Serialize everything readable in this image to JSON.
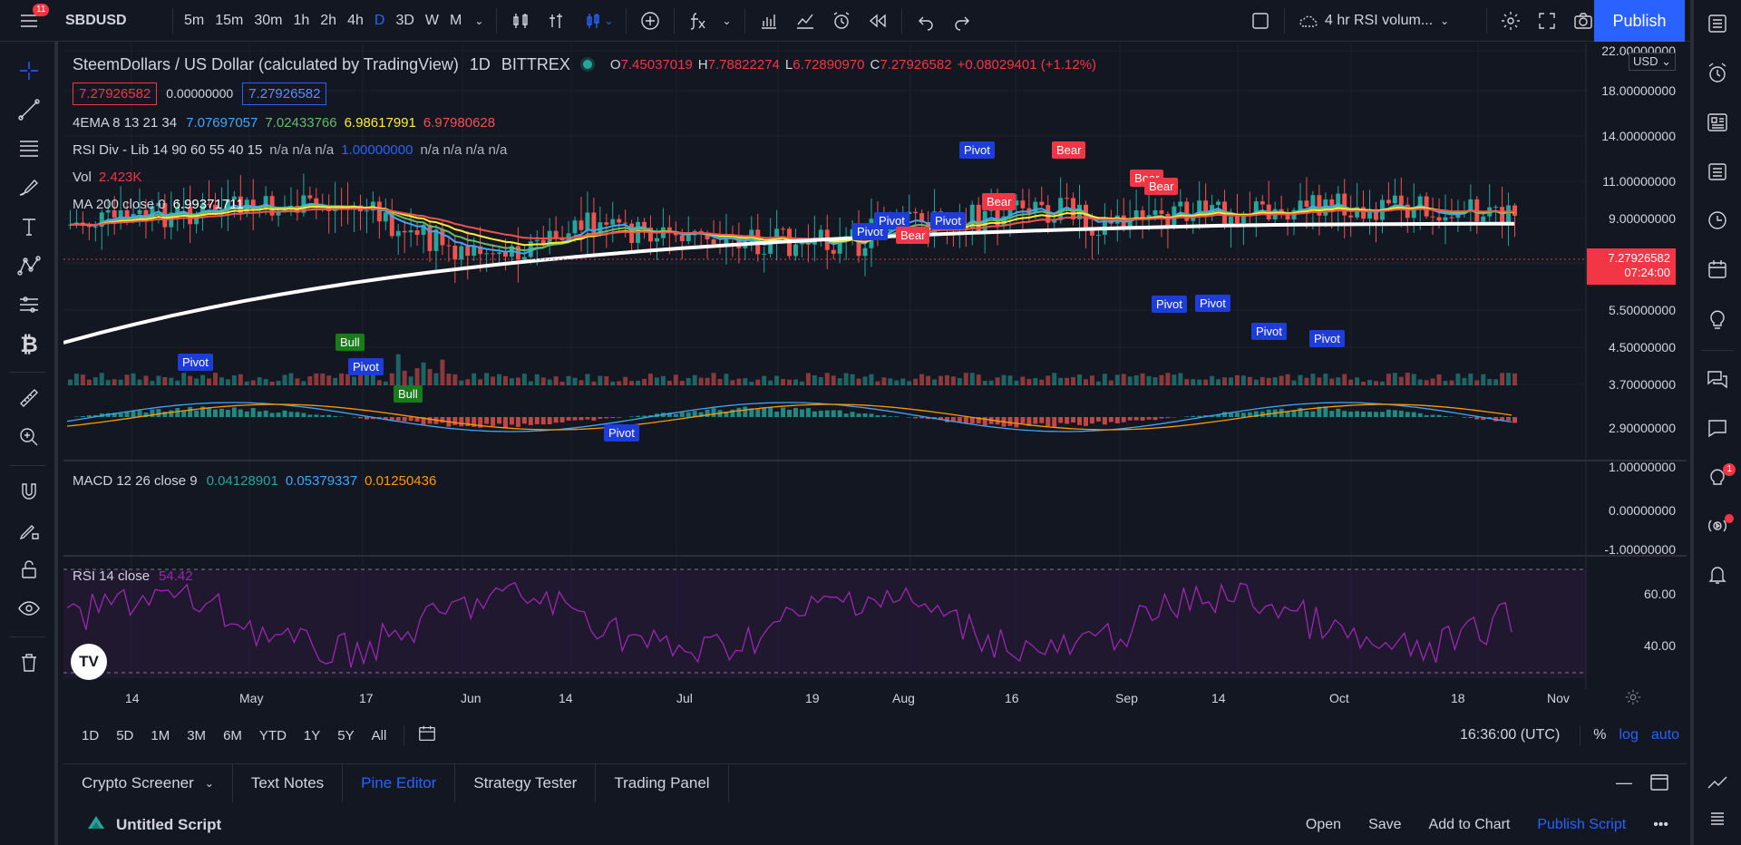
{
  "topbar": {
    "notif_count": "11",
    "symbol": "SBDUSD",
    "intervals": [
      "5m",
      "15m",
      "30m",
      "1h",
      "2h",
      "4h",
      "D",
      "3D",
      "W",
      "M"
    ],
    "active_interval": "D",
    "layout_name": "4 hr RSI volum...",
    "publish_label": "Publish"
  },
  "legend": {
    "title": "SteemDollars / US Dollar (calculated by TradingView)",
    "resolution": "1D",
    "exchange": "BITTREX",
    "ohlc": {
      "o_label": "O",
      "o": "7.45037019",
      "h_label": "H",
      "h": "7.78822274",
      "l_label": "L",
      "l": "6.72890970",
      "c_label": "C",
      "c": "7.27926582",
      "change": "+0.08029401 (+1.12%)"
    },
    "bid": "7.27926582",
    "spread": "0.00000000",
    "ask": "7.27926582",
    "ema": {
      "name": "4EMA 8 13 21 34",
      "v1": "7.07697057",
      "v2": "7.02433766",
      "v3": "6.98617991",
      "v4": "6.97980628"
    },
    "rsi_div": {
      "name": "RSI Div - Lib 14 90 60 55 40 15",
      "vals": "n/a n/a n/a",
      "v_blue": "1.00000000",
      "vals2": "n/a n/a n/a n/a"
    },
    "vol": {
      "name": "Vol",
      "value": "2.423K"
    },
    "ma": {
      "name": "MA 200 close 0",
      "value": "6.99371711"
    }
  },
  "macd": {
    "name": "MACD 12 26 close 9",
    "v1": "0.04128901",
    "v2": "0.05379337",
    "v3": "0.01250436"
  },
  "rsi": {
    "name": "RSI 14 close",
    "value": "54.42"
  },
  "price_scale": {
    "currency": "USD",
    "labels": [
      "22.00000000",
      "18.00000000",
      "14.00000000",
      "11.00000000",
      "9.00000000",
      "5.50000000",
      "4.50000000",
      "3.70000000",
      "2.90000000"
    ],
    "current": "7.27926582",
    "countdown": "07:24:00",
    "macd_labels": [
      "1.00000000",
      "0.00000000",
      "-1.00000000"
    ],
    "rsi_labels": [
      "60.00",
      "40.00"
    ]
  },
  "time_axis": [
    "14",
    "May",
    "17",
    "Jun",
    "14",
    "Jul",
    "19",
    "Aug",
    "16",
    "Sep",
    "14",
    "Oct",
    "18",
    "Nov"
  ],
  "signals": {
    "pivot": "Pivot",
    "bear": "Bear",
    "bull": "Bull"
  },
  "rangebar": {
    "ranges": [
      "1D",
      "5D",
      "1M",
      "3M",
      "6M",
      "YTD",
      "1Y",
      "5Y",
      "All"
    ],
    "clock": "16:36:00 (UTC)",
    "pct": "%",
    "log": "log",
    "auto": "auto"
  },
  "bottom_tabs": [
    "Crypto Screener",
    "Text Notes",
    "Pine Editor",
    "Strategy Tester",
    "Trading Panel"
  ],
  "active_bottom_tab": "Pine Editor",
  "script": {
    "title": "Untitled Script",
    "open": "Open",
    "save": "Save",
    "add": "Add to Chart",
    "publish": "Publish Script"
  },
  "colors": {
    "up": "#26a69a",
    "down": "#ef5350",
    "accent": "#2962ff",
    "rsi": "#9c27b0",
    "ma": "#ffffff"
  },
  "right_badge": "1"
}
